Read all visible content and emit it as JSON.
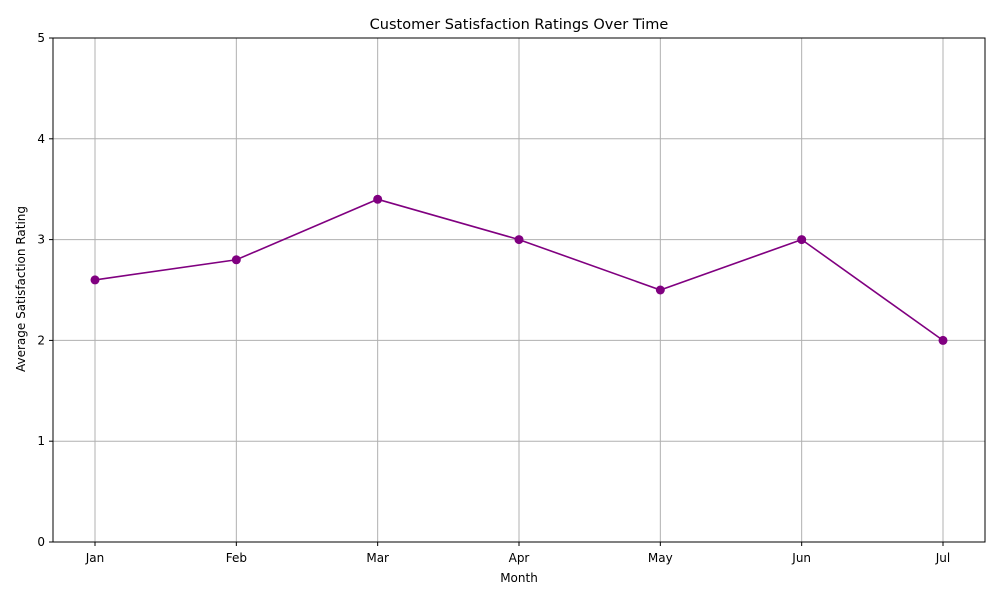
{
  "chart_data": {
    "type": "line",
    "title": "Customer Satisfaction Ratings Over Time",
    "xlabel": "Month",
    "ylabel": "Average Satisfaction Rating",
    "categories": [
      "Jan",
      "Feb",
      "Mar",
      "Apr",
      "May",
      "Jun",
      "Jul"
    ],
    "series": [
      {
        "values": [
          2.6,
          2.8,
          3.4,
          3.0,
          2.5,
          3.0,
          2.0
        ],
        "color": "#800080",
        "marker": "circle"
      }
    ],
    "ylim": [
      0,
      5
    ],
    "yticks": [
      0,
      1,
      2,
      3,
      4,
      5
    ],
    "grid": true,
    "grid_color": "#b0b0b0",
    "legend": false
  }
}
